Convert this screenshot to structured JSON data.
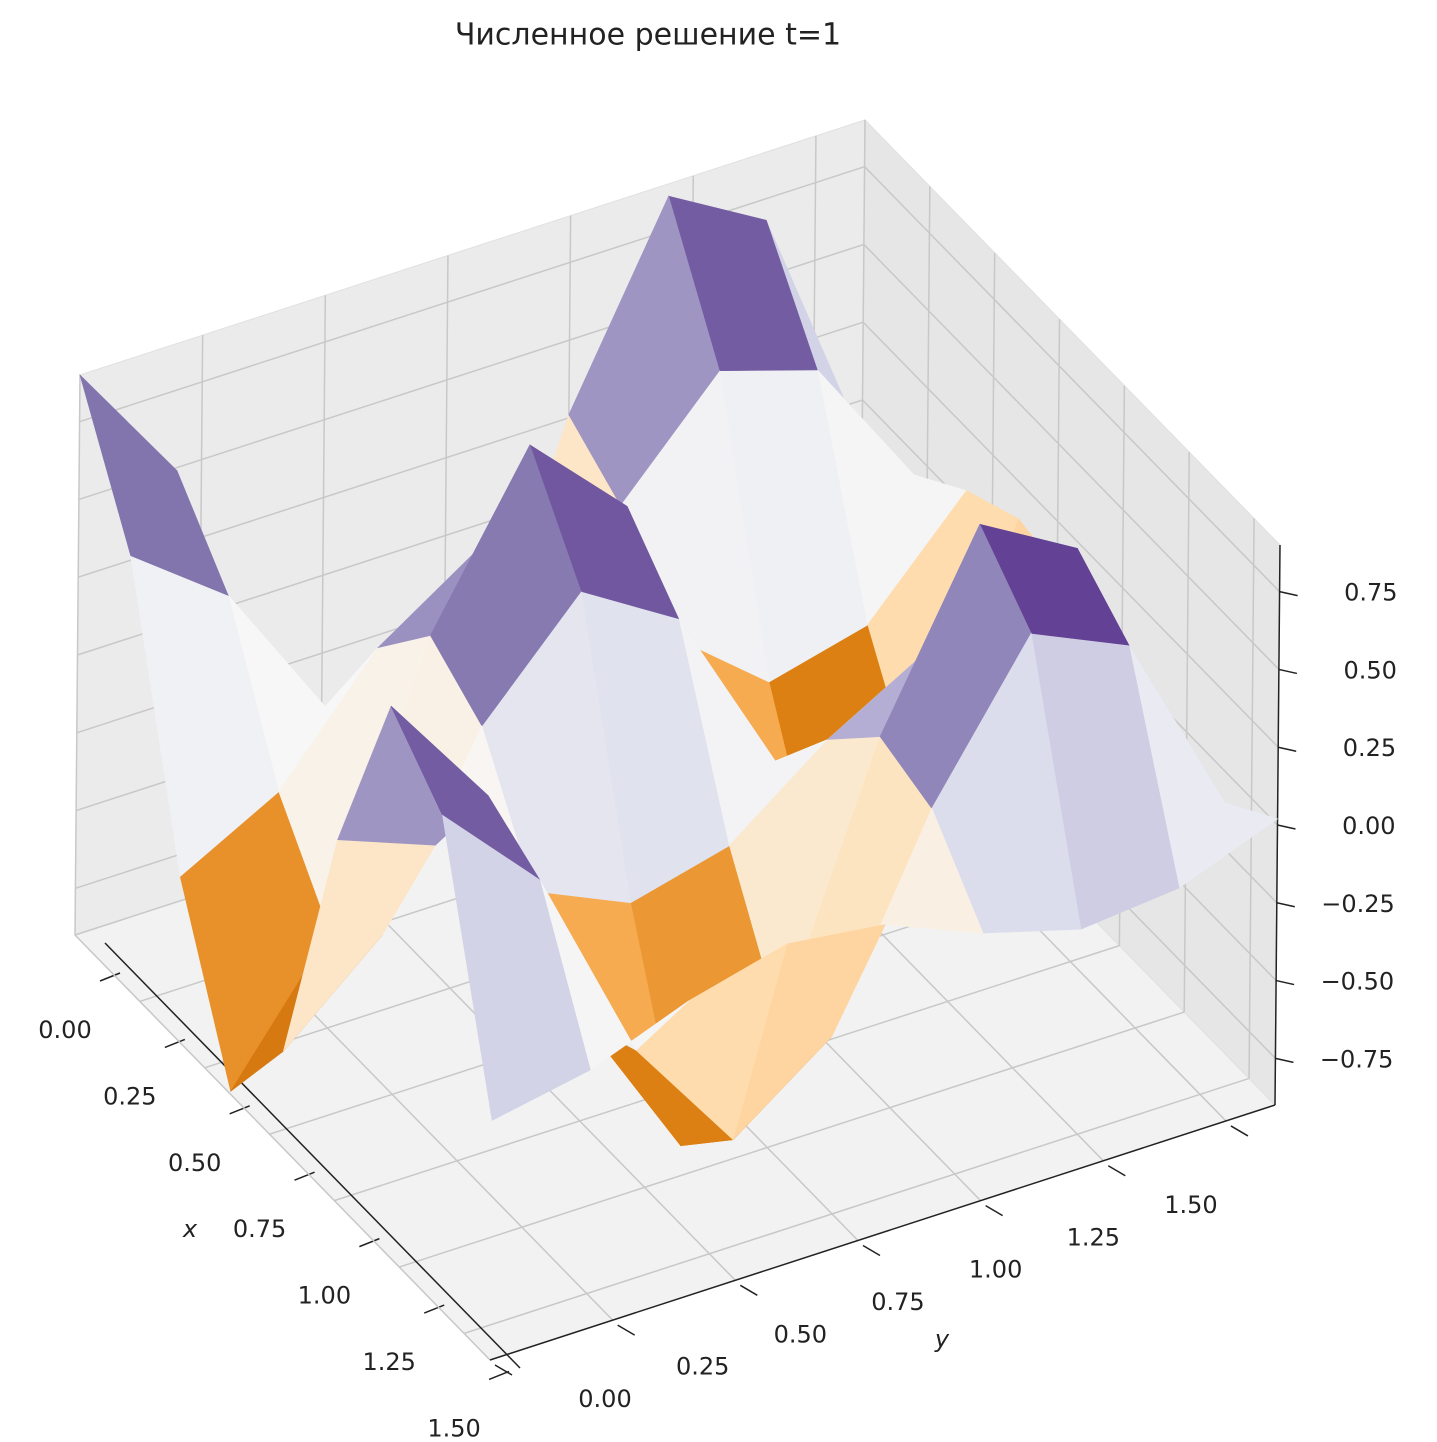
{
  "chart_data": {
    "type": "surface",
    "title": "Численное решение t=1",
    "xlabel": "x",
    "ylabel": "y",
    "x": [
      0,
      0.2,
      0.4,
      0.6,
      0.8,
      1.0,
      1.2,
      1.4,
      1.6
    ],
    "y": [
      0,
      0.2,
      0.4,
      0.6,
      0.8,
      1.0,
      1.2,
      1.4,
      1.6
    ],
    "z": [
      [
        0.9,
        0.49,
        -0.37,
        -0.89,
        -0.59,
        0.26,
        0.86,
        0.68,
        -0.13
      ],
      [
        0.49,
        0.26,
        -0.2,
        -0.48,
        -0.32,
        0.14,
        0.47,
        0.37,
        -0.07
      ],
      [
        -0.37,
        -0.2,
        0.16,
        0.37,
        0.24,
        -0.11,
        -0.36,
        -0.28,
        0.05
      ],
      [
        -0.89,
        -0.48,
        0.37,
        0.88,
        0.58,
        -0.25,
        -0.86,
        -0.67,
        0.13
      ],
      [
        -0.59,
        -0.32,
        0.25,
        0.58,
        0.39,
        -0.17,
        -0.57,
        -0.44,
        0.09
      ],
      [
        0.26,
        0.14,
        -0.11,
        -0.25,
        -0.17,
        0.07,
        0.25,
        0.19,
        -0.04
      ],
      [
        0.86,
        0.47,
        -0.36,
        -0.86,
        -0.57,
        0.25,
        0.83,
        0.65,
        -0.13
      ],
      [
        0.68,
        0.37,
        -0.28,
        -0.67,
        -0.44,
        0.19,
        0.65,
        0.51,
        -0.1
      ],
      [
        -0.13,
        -0.07,
        0.05,
        0.13,
        0.09,
        -0.04,
        -0.13,
        -0.1,
        0.02
      ]
    ],
    "xlim": [
      0,
      1.6
    ],
    "ylim": [
      0,
      1.6
    ],
    "zlim": [
      -0.9,
      0.9
    ],
    "xticks": [
      {
        "value": 0,
        "label": "0.00"
      },
      {
        "value": 0.25,
        "label": "0.25"
      },
      {
        "value": 0.5,
        "label": "0.50"
      },
      {
        "value": 0.75,
        "label": "0.75"
      },
      {
        "value": 1,
        "label": "1.00"
      },
      {
        "value": 1.25,
        "label": "1.25"
      },
      {
        "value": 1.5,
        "label": "1.50"
      }
    ],
    "yticks": [
      {
        "value": 0,
        "label": "0.00"
      },
      {
        "value": 0.25,
        "label": "0.25"
      },
      {
        "value": 0.5,
        "label": "0.50"
      },
      {
        "value": 0.75,
        "label": "0.75"
      },
      {
        "value": 1,
        "label": "1.00"
      },
      {
        "value": 1.25,
        "label": "1.25"
      },
      {
        "value": 1.5,
        "label": "1.50"
      }
    ],
    "zticks": [
      {
        "value": -0.75,
        "label": "−0.75"
      },
      {
        "value": -0.5,
        "label": "−0.50"
      },
      {
        "value": -0.25,
        "label": "−0.25"
      },
      {
        "value": 0,
        "label": "0.00"
      },
      {
        "value": 0.25,
        "label": "0.25"
      },
      {
        "value": 0.5,
        "label": "0.50"
      },
      {
        "value": 0.75,
        "label": "0.75"
      }
    ],
    "colormap": "PuOr",
    "grid": true
  }
}
